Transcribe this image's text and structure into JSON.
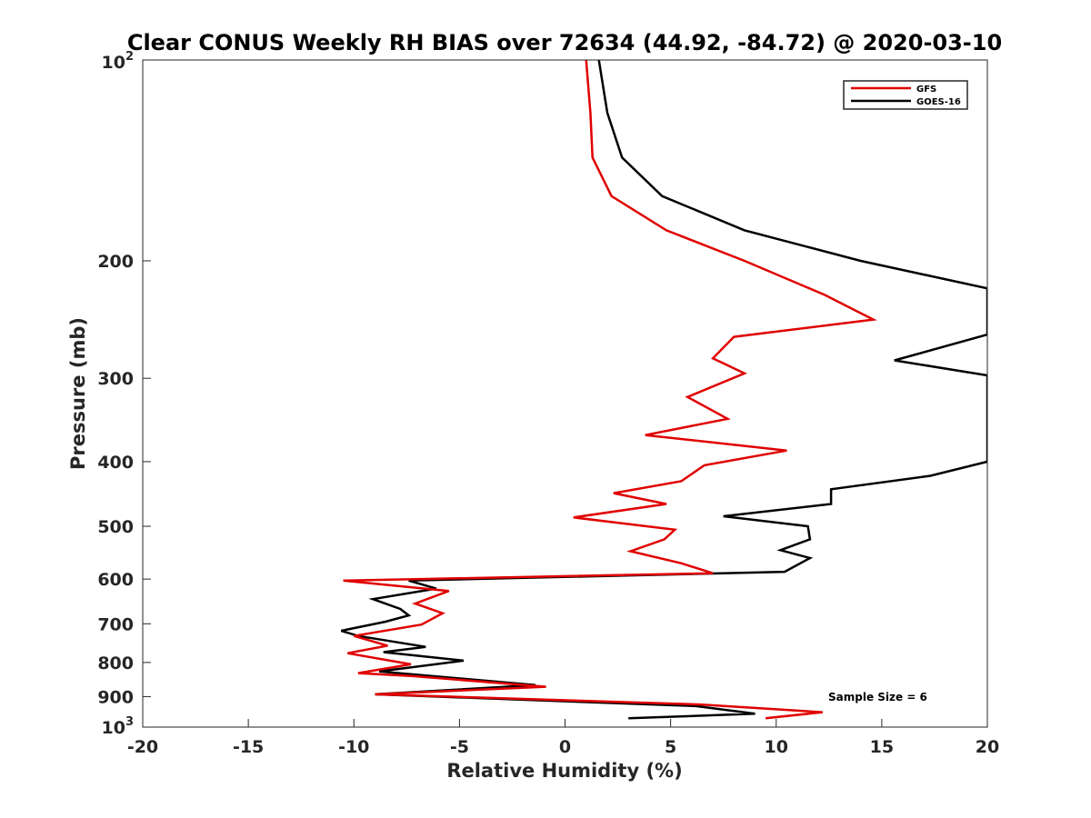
{
  "chart_data": {
    "type": "line",
    "title": "Clear CONUS Weekly RH BIAS over 72634 (44.92, -84.72) @ 2020-03-10",
    "xlabel": "Relative Humidity (%)",
    "ylabel": "Pressure (mb)",
    "xlim": [
      -20,
      20
    ],
    "ylim": [
      100,
      1000
    ],
    "yscale": "log",
    "y_reversed": true,
    "x_ticks": [
      -20,
      -15,
      -10,
      -5,
      0,
      5,
      10,
      15,
      20
    ],
    "x_tick_labels": [
      "-20",
      "-15",
      "-10",
      "-5",
      "0",
      "5",
      "10",
      "15",
      "20"
    ],
    "y_ticks": [
      200,
      300,
      400,
      500,
      600,
      700,
      800,
      900
    ],
    "y_tick_labels": [
      "200",
      "300",
      "400",
      "500",
      "600",
      "700",
      "800",
      "900"
    ],
    "y_tick_label_bottom": "10",
    "y_tick_label_bottom_exp": "3",
    "y_tick_label_top": "10",
    "y_tick_label_top_exp": "2",
    "legend_position": "top-right",
    "annotation": "Sample Size = 6",
    "series": [
      {
        "name": "GFS",
        "color": "#e00000",
        "points": [
          [
            1.0,
            100
          ],
          [
            1.2,
            120
          ],
          [
            1.3,
            140
          ],
          [
            2.2,
            160
          ],
          [
            4.8,
            180
          ],
          [
            8.5,
            200
          ],
          [
            12.3,
            225
          ],
          [
            14.6,
            245
          ],
          [
            8.0,
            260
          ],
          [
            7.0,
            280
          ],
          [
            8.5,
            295
          ],
          [
            5.8,
            320
          ],
          [
            7.7,
            345
          ],
          [
            3.8,
            365
          ],
          [
            10.5,
            385
          ],
          [
            6.6,
            405
          ],
          [
            5.5,
            428
          ],
          [
            2.3,
            446
          ],
          [
            4.8,
            463
          ],
          [
            0.4,
            485
          ],
          [
            5.2,
            506
          ],
          [
            4.7,
            523
          ],
          [
            3.1,
            545
          ],
          [
            5.5,
            568
          ],
          [
            7.0,
            588
          ],
          [
            -10.5,
            603
          ],
          [
            -5.5,
            625
          ],
          [
            -7.1,
            653
          ],
          [
            -5.8,
            675
          ],
          [
            -6.8,
            702
          ],
          [
            -10.0,
            730
          ],
          [
            -8.4,
            755
          ],
          [
            -10.3,
            775
          ],
          [
            -7.3,
            805
          ],
          [
            -9.8,
            830
          ],
          [
            -7.3,
            838
          ],
          [
            -0.9,
            870
          ],
          [
            -9.0,
            893
          ],
          [
            6.4,
            925
          ],
          [
            12.2,
            950
          ],
          [
            9.5,
            970
          ]
        ]
      },
      {
        "name": "GOES-16",
        "color": "#000000",
        "points": [
          [
            1.6,
            100
          ],
          [
            2.0,
            120
          ],
          [
            2.7,
            140
          ],
          [
            4.6,
            160
          ],
          [
            8.5,
            180
          ],
          [
            14.0,
            200
          ],
          [
            20.0,
            220
          ],
          [
            20.0,
            258
          ],
          [
            15.6,
            282
          ],
          [
            20.0,
            297
          ],
          [
            20.0,
            400
          ],
          [
            17.3,
            420
          ],
          [
            12.6,
            440
          ],
          [
            12.6,
            463
          ],
          [
            7.5,
            483
          ],
          [
            11.5,
            500
          ],
          [
            11.6,
            523
          ],
          [
            10.2,
            543
          ],
          [
            11.6,
            558
          ],
          [
            10.4,
            585
          ],
          [
            -7.4,
            603
          ],
          [
            -6.1,
            620
          ],
          [
            -9.1,
            643
          ],
          [
            -7.8,
            665
          ],
          [
            -7.4,
            680
          ],
          [
            -8.5,
            695
          ],
          [
            -10.6,
            717
          ],
          [
            -9.8,
            730
          ],
          [
            -6.6,
            758
          ],
          [
            -8.6,
            772
          ],
          [
            -4.8,
            795
          ],
          [
            -8.8,
            825
          ],
          [
            -1.4,
            865
          ],
          [
            -9.0,
            893
          ],
          [
            6.2,
            930
          ],
          [
            9.0,
            955
          ],
          [
            3.0,
            970
          ]
        ]
      }
    ]
  }
}
